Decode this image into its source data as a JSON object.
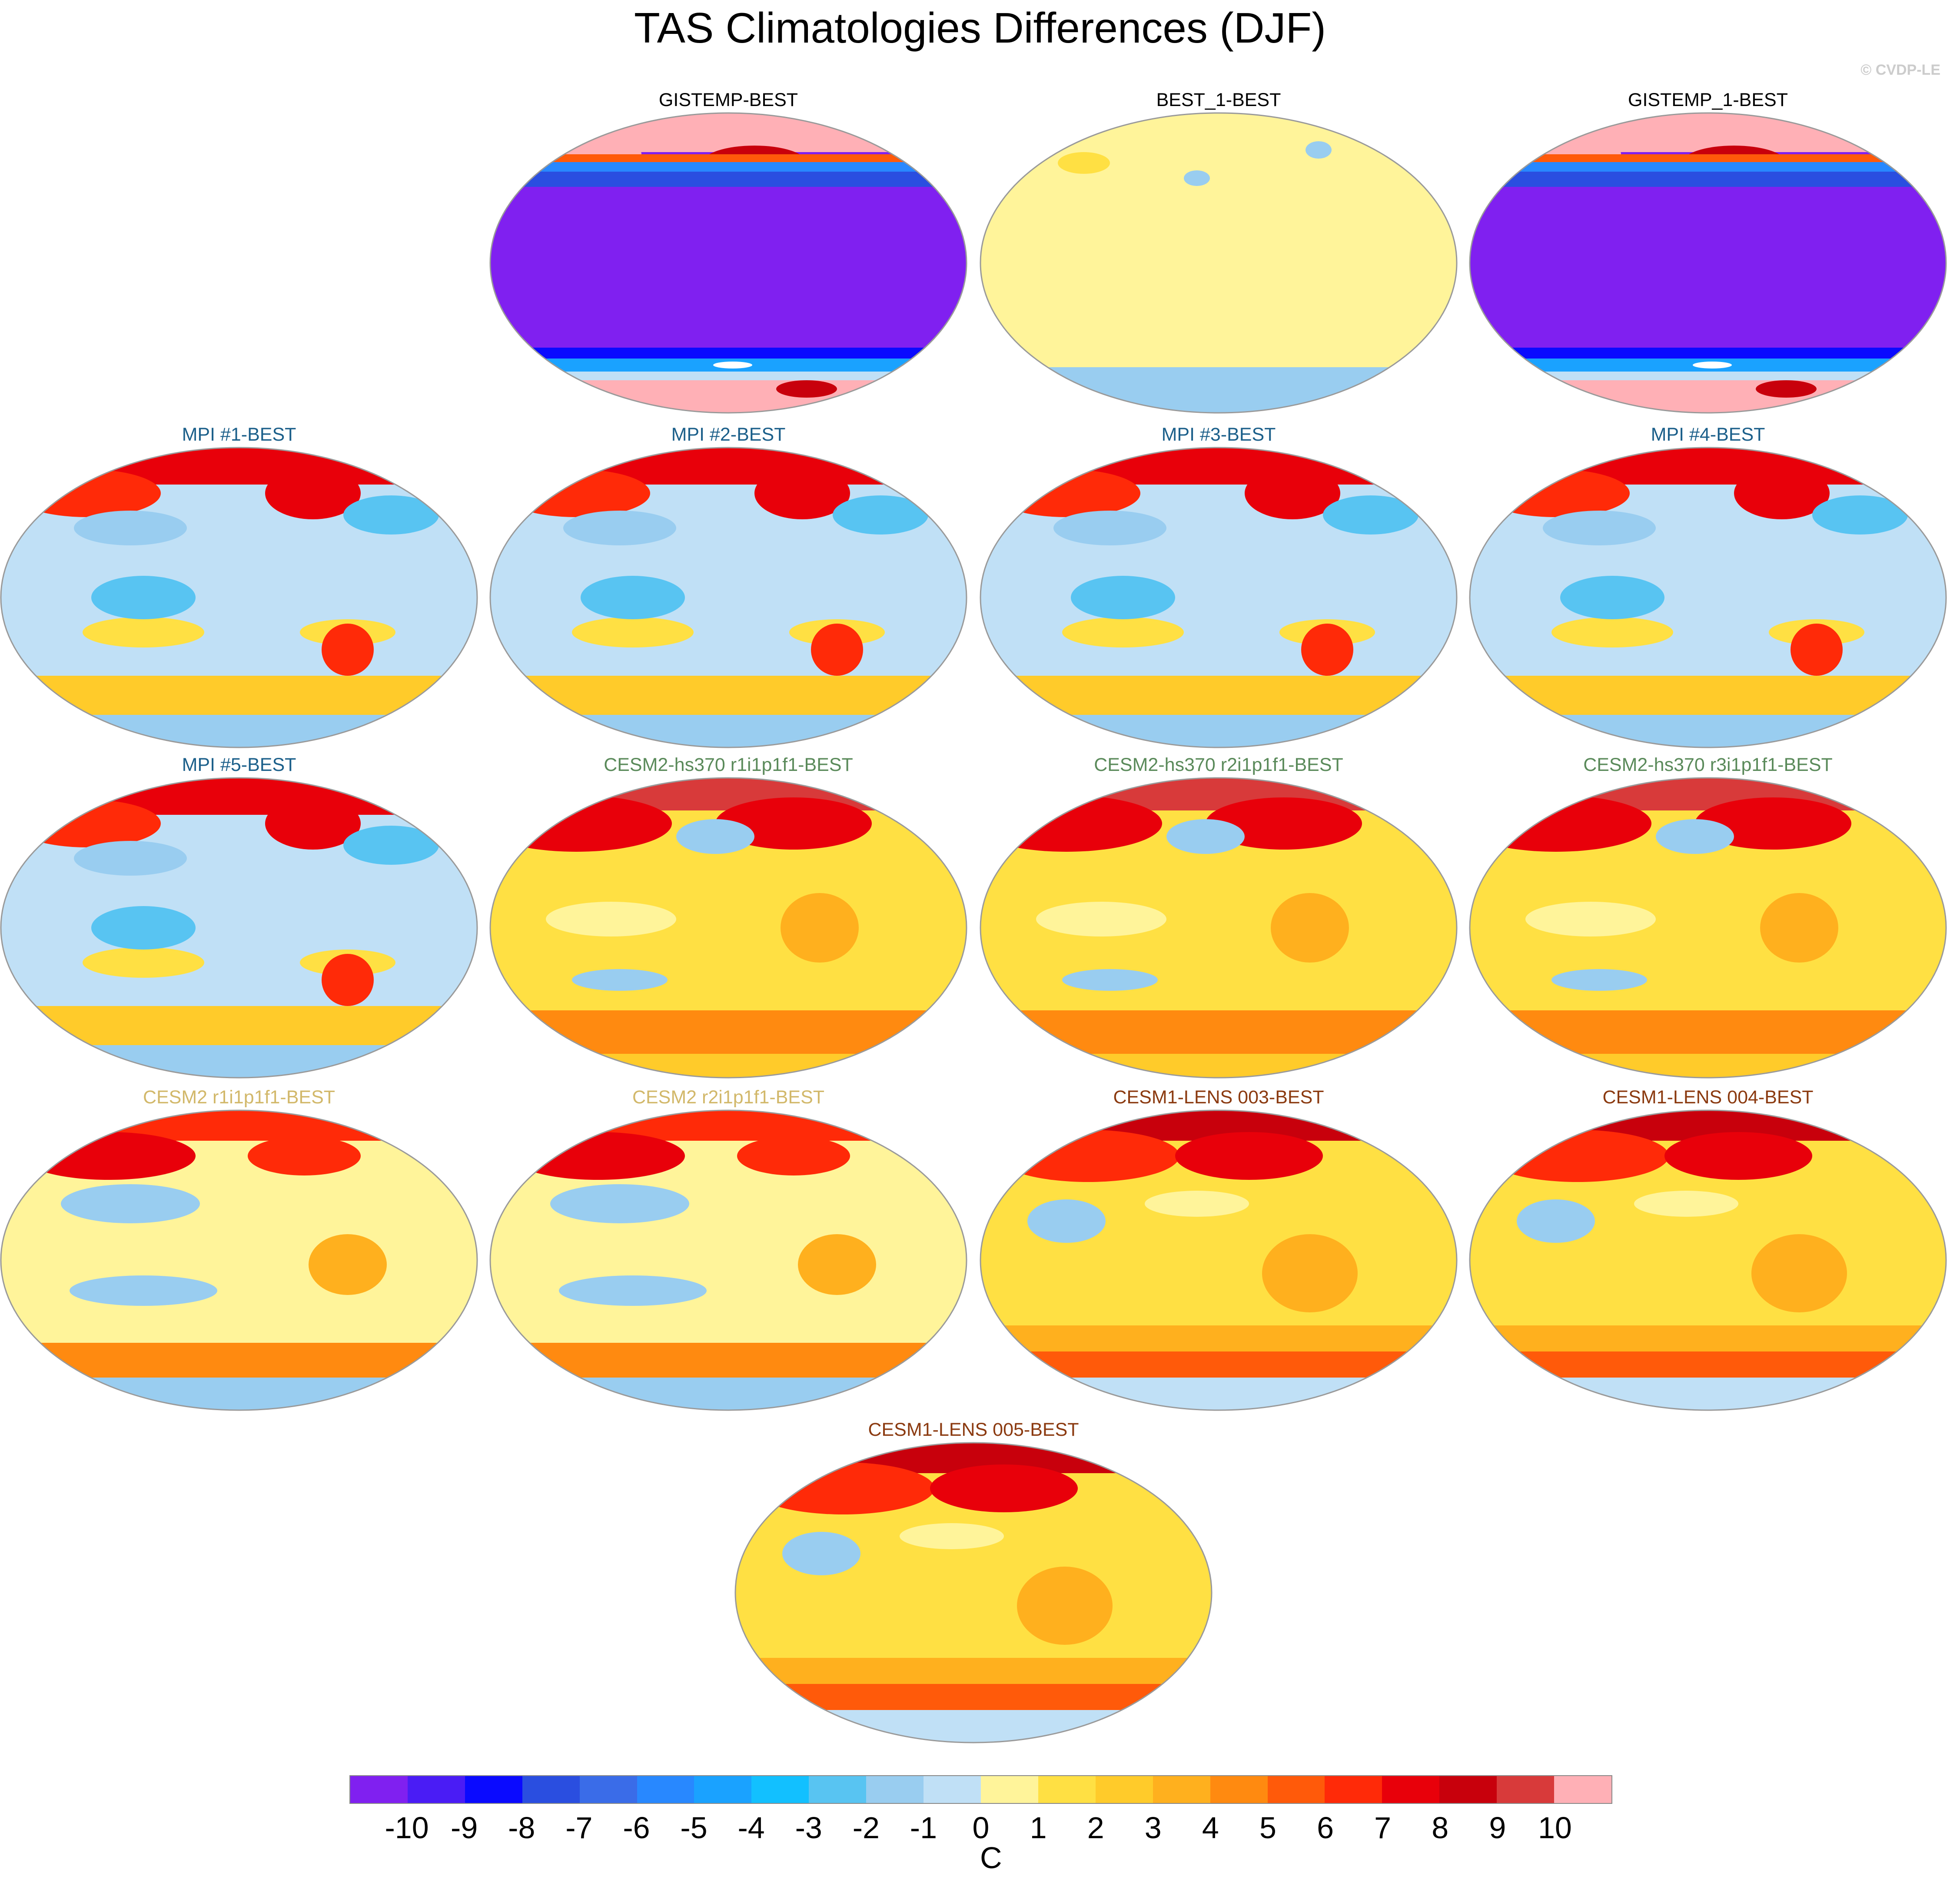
{
  "title": "TAS Climatologies Differences (DJF)",
  "watermark": "© CVDP-LE",
  "units": "C",
  "colorbar": {
    "ticks": [
      "-10",
      "-9",
      "-8",
      "-7",
      "-6",
      "-5",
      "-4",
      "-3",
      "-2",
      "-1",
      "0",
      "1",
      "2",
      "3",
      "4",
      "5",
      "6",
      "7",
      "8",
      "9",
      "10"
    ],
    "colors": [
      "#8020f0",
      "#4a1cf5",
      "#0a0aff",
      "#2a4ee0",
      "#3a6ce8",
      "#2888ff",
      "#1aa2ff",
      "#12c0ff",
      "#58c4f2",
      "#99cdf0",
      "#c0e0f6",
      "#fff49a",
      "#ffe043",
      "#ffcb2a",
      "#ffb01e",
      "#ff8a10",
      "#ff5a0a",
      "#ff2a08",
      "#e8000a",
      "#c8000c",
      "#d83a3a",
      "#ffb0b6"
    ]
  },
  "panels": [
    {
      "label": "GISTEMP-BEST",
      "label_color": "#000000",
      "pattern": "obs"
    },
    {
      "label": "BEST_1-BEST",
      "label_color": "#000000",
      "pattern": "flat"
    },
    {
      "label": "GISTEMP_1-BEST",
      "label_color": "#000000",
      "pattern": "obs"
    },
    {
      "label": "MPI #1-BEST",
      "label_color": "#1b5f8a",
      "pattern": "mpi"
    },
    {
      "label": "MPI #2-BEST",
      "label_color": "#1b5f8a",
      "pattern": "mpi"
    },
    {
      "label": "MPI #3-BEST",
      "label_color": "#1b5f8a",
      "pattern": "mpi"
    },
    {
      "label": "MPI #4-BEST",
      "label_color": "#1b5f8a",
      "pattern": "mpi"
    },
    {
      "label": "MPI #5-BEST",
      "label_color": "#1b5f8a",
      "pattern": "mpi"
    },
    {
      "label": "CESM2-hs370 r1i1p1f1-BEST",
      "label_color": "#5a8a5a",
      "pattern": "hs370"
    },
    {
      "label": "CESM2-hs370 r2i1p1f1-BEST",
      "label_color": "#5a8a5a",
      "pattern": "hs370"
    },
    {
      "label": "CESM2-hs370 r3i1p1f1-BEST",
      "label_color": "#5a8a5a",
      "pattern": "hs370"
    },
    {
      "label": "CESM2 r1i1p1f1-BEST",
      "label_color": "#d2b86a",
      "pattern": "cesm2"
    },
    {
      "label": "CESM2 r2i1p1f1-BEST",
      "label_color": "#d2b86a",
      "pattern": "cesm2"
    },
    {
      "label": "CESM1-LENS 003-BEST",
      "label_color": "#8b3a10",
      "pattern": "lens"
    },
    {
      "label": "CESM1-LENS 004-BEST",
      "label_color": "#8b3a10",
      "pattern": "lens"
    },
    {
      "label": "CESM1-LENS 005-BEST",
      "label_color": "#8b3a10",
      "pattern": "lens"
    }
  ]
}
